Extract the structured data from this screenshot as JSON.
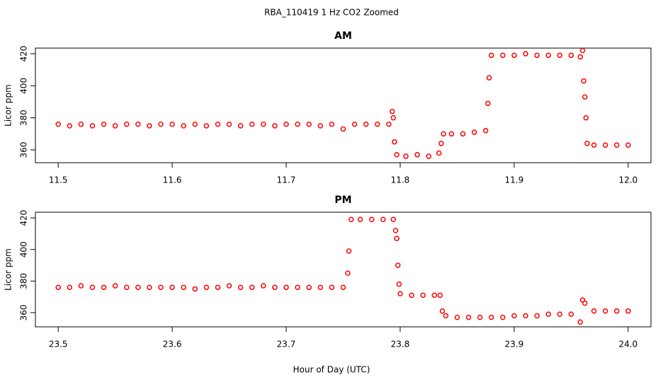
{
  "title": "RBA_110419  1 Hz CO2 Zoomed",
  "xlabel": "Hour of Day (UTC)",
  "chart_data": [
    {
      "type": "scatter",
      "title": "AM",
      "ylabel": "Licor ppm",
      "color": "#ff0000",
      "x": [
        11.5,
        11.51,
        11.52,
        11.53,
        11.54,
        11.55,
        11.56,
        11.57,
        11.58,
        11.59,
        11.6,
        11.61,
        11.62,
        11.63,
        11.64,
        11.65,
        11.66,
        11.67,
        11.68,
        11.69,
        11.7,
        11.71,
        11.72,
        11.73,
        11.74,
        11.75,
        11.76,
        11.77,
        11.78,
        11.79,
        11.793,
        11.794,
        11.795,
        11.797,
        11.805,
        11.815,
        11.825,
        11.834,
        11.836,
        11.838,
        11.845,
        11.855,
        11.865,
        11.875,
        11.877,
        11.878,
        11.88,
        11.89,
        11.9,
        11.91,
        11.92,
        11.93,
        11.94,
        11.95,
        11.958,
        11.96,
        11.961,
        11.962,
        11.963,
        11.964,
        11.97,
        11.98,
        11.99,
        12.0
      ],
      "values": [
        376,
        375,
        376,
        375,
        376,
        375,
        376,
        376,
        375,
        376,
        376,
        375,
        376,
        375,
        376,
        376,
        375,
        376,
        376,
        375,
        376,
        376,
        376,
        375,
        376,
        373,
        376,
        376,
        376,
        376,
        384,
        380,
        365,
        357,
        356,
        357,
        356,
        358,
        364,
        370,
        370,
        370,
        371,
        372,
        389,
        405,
        419,
        419,
        419,
        420,
        419,
        419,
        419,
        419,
        418,
        422,
        403,
        393,
        380,
        364,
        363,
        363,
        363,
        363
      ],
      "xlim": [
        11.48,
        12.02
      ],
      "ylim": [
        352,
        423.5
      ],
      "xticks": [
        11.5,
        11.6,
        11.7,
        11.8,
        11.9,
        {
          "value": 12,
          "label": "12.0"
        }
      ],
      "yticks": [
        360,
        380,
        400,
        420
      ]
    },
    {
      "type": "scatter",
      "title": "PM",
      "ylabel": "Licor ppm",
      "color": "#ff0000",
      "x": [
        23.5,
        23.51,
        23.52,
        23.53,
        23.54,
        23.55,
        23.56,
        23.57,
        23.58,
        23.59,
        23.6,
        23.61,
        23.62,
        23.63,
        23.64,
        23.65,
        23.66,
        23.67,
        23.68,
        23.69,
        23.7,
        23.71,
        23.72,
        23.73,
        23.74,
        23.75,
        23.754,
        23.755,
        23.757,
        23.765,
        23.775,
        23.785,
        23.794,
        23.796,
        23.797,
        23.798,
        23.799,
        23.8,
        23.81,
        23.82,
        23.83,
        23.835,
        23.837,
        23.84,
        23.85,
        23.86,
        23.87,
        23.88,
        23.89,
        23.9,
        23.91,
        23.92,
        23.93,
        23.94,
        23.95,
        23.958,
        23.96,
        23.962,
        23.97,
        23.98,
        23.99,
        24.0
      ],
      "values": [
        376,
        376,
        377,
        376,
        376,
        377,
        376,
        376,
        376,
        376,
        376,
        376,
        375,
        376,
        376,
        377,
        376,
        376,
        377,
        376,
        376,
        376,
        376,
        376,
        376,
        376,
        385,
        399,
        419,
        419,
        419,
        419,
        419,
        412,
        407,
        390,
        378,
        372,
        371,
        371,
        371,
        371,
        361,
        358,
        357,
        357,
        357,
        357,
        357,
        358,
        358,
        358,
        359,
        359,
        359,
        354,
        368,
        366,
        361,
        361,
        361,
        361
      ],
      "xlim": [
        23.48,
        24.02
      ],
      "ylim": [
        351,
        423.6
      ],
      "xticks": [
        23.5,
        23.6,
        23.7,
        23.8,
        23.9,
        {
          "value": 24,
          "label": "24.0"
        }
      ],
      "yticks": [
        360,
        380,
        400,
        420
      ]
    }
  ]
}
